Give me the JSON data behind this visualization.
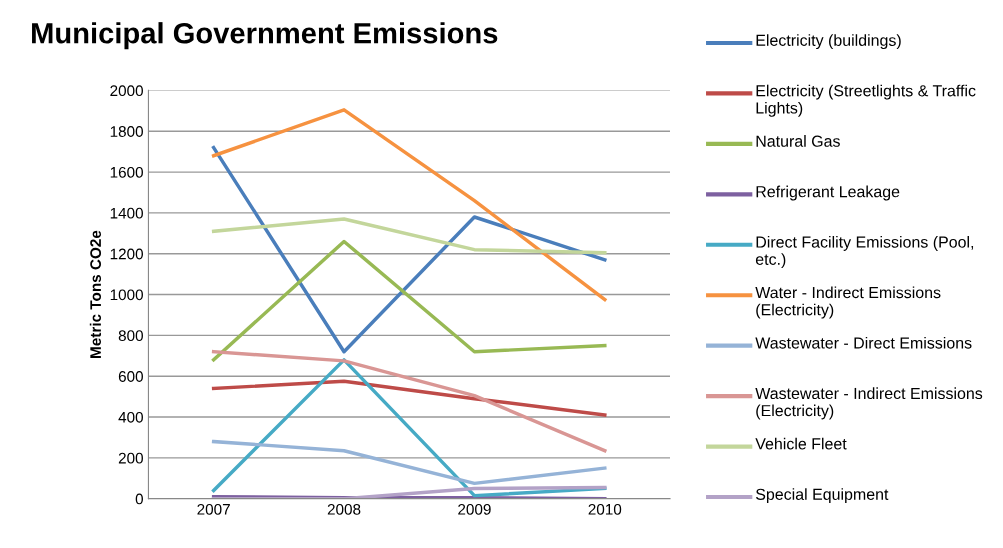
{
  "chart_data": {
    "type": "line",
    "title": "Municipal Government Emissions",
    "ylabel": "Metric Tons CO2e",
    "categories": [
      "2007",
      "2008",
      "2009",
      "2010"
    ],
    "series": [
      {
        "name": "Electricity (buildings)",
        "color": "#4a7ebb",
        "values": [
          1720,
          720,
          1380,
          1170
        ]
      },
      {
        "name": "Electricity (Streetlights & Traffic Lights)",
        "color": "#be4b48",
        "values": [
          540,
          575,
          490,
          410
        ]
      },
      {
        "name": "Natural Gas",
        "color": "#98b954",
        "values": [
          680,
          1260,
          720,
          750
        ]
      },
      {
        "name": "Refrigerant Leakage",
        "color": "#7d60a0",
        "values": [
          10,
          5,
          5,
          0
        ]
      },
      {
        "name": "Direct Facility Emissions (Pool, etc.)",
        "color": "#46aac5",
        "values": [
          40,
          680,
          15,
          50
        ]
      },
      {
        "name": "Water - Indirect Emissions (Electricity)",
        "color": "#f69240",
        "values": [
          1680,
          1905,
          1460,
          975
        ]
      },
      {
        "name": "Wastewater - Direct Emissions",
        "color": "#95b3d7",
        "values": [
          280,
          235,
          75,
          150
        ]
      },
      {
        "name": "Wastewater - Indirect Emissions (Electricity)",
        "color": "#d99694",
        "values": [
          720,
          675,
          505,
          235
        ]
      },
      {
        "name": "Vehicle Fleet",
        "color": "#c3d69b",
        "values": [
          1310,
          1370,
          1220,
          1205
        ]
      },
      {
        "name": "Special Equipment",
        "color": "#b3a2c7",
        "values": [
          0,
          0,
          50,
          55
        ]
      }
    ],
    "ylim": [
      0,
      2000
    ],
    "yticks": [
      0,
      200,
      400,
      600,
      800,
      1000,
      1200,
      1400,
      1600,
      1800,
      2000
    ],
    "grid": "y",
    "legend": "right",
    "marker": "none",
    "line_style": "solid"
  }
}
